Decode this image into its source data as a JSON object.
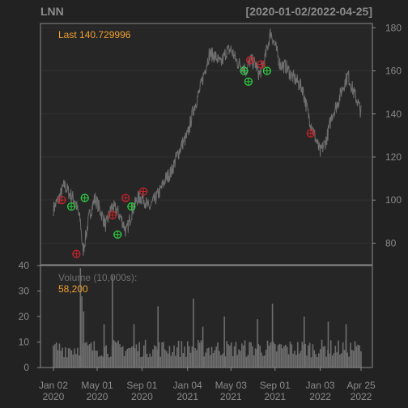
{
  "colors": {
    "background": "#222222",
    "panel": "#262626",
    "frame": "#8a8a8a",
    "grid": "#303030",
    "axis_text": "#8a8a8a",
    "title_text": "#8a8a8a",
    "accent": "#f0a030",
    "price_line": "#6e6e6e",
    "volume_bar": "#6e6e6e",
    "buy_signal": "#2ecc40",
    "sell_signal": "#c0242a"
  },
  "chart_data": {
    "type": "line",
    "symbol": "LNN",
    "date_range": "[2020-01-02/2022-04-25]",
    "x_range": [
      "2020-01-02",
      "2022-04-25"
    ],
    "last_label": "Last 140.729996",
    "price_axis": {
      "ylim": [
        70,
        182
      ],
      "ticks": [
        80,
        100,
        120,
        140,
        160,
        180
      ],
      "position": "right"
    },
    "x_ticks": [
      {
        "date": "2020-01-02",
        "line1": "Jan 02",
        "line2": "2020"
      },
      {
        "date": "2020-05-01",
        "line1": "May 01",
        "line2": "2020"
      },
      {
        "date": "2020-09-01",
        "line1": "Sep 01",
        "line2": "2020"
      },
      {
        "date": "2021-01-04",
        "line1": "Jan 04",
        "line2": "2021"
      },
      {
        "date": "2021-05-03",
        "line1": "May 03",
        "line2": "2021"
      },
      {
        "date": "2021-09-01",
        "line1": "Sep 01",
        "line2": "2021"
      },
      {
        "date": "2022-01-03",
        "line1": "Jan 03",
        "line2": "2022"
      },
      {
        "date": "2022-04-25",
        "line1": "Apr 25",
        "line2": "2022"
      }
    ],
    "price_series": [
      [
        "2020-01-02",
        96
      ],
      [
        "2020-01-15",
        100
      ],
      [
        "2020-02-01",
        107
      ],
      [
        "2020-02-15",
        103
      ],
      [
        "2020-03-01",
        100
      ],
      [
        "2020-03-16",
        90
      ],
      [
        "2020-03-23",
        76
      ],
      [
        "2020-04-10",
        93
      ],
      [
        "2020-04-25",
        101
      ],
      [
        "2020-05-10",
        95
      ],
      [
        "2020-05-25",
        88
      ],
      [
        "2020-06-10",
        97
      ],
      [
        "2020-06-25",
        95
      ],
      [
        "2020-07-10",
        90
      ],
      [
        "2020-07-20",
        85
      ],
      [
        "2020-08-05",
        95
      ],
      [
        "2020-08-20",
        101
      ],
      [
        "2020-09-05",
        101
      ],
      [
        "2020-09-20",
        96
      ],
      [
        "2020-10-05",
        100
      ],
      [
        "2020-10-20",
        104
      ],
      [
        "2020-11-05",
        110
      ],
      [
        "2020-11-20",
        113
      ],
      [
        "2020-12-05",
        120
      ],
      [
        "2020-12-20",
        126
      ],
      [
        "2021-01-04",
        130
      ],
      [
        "2021-01-20",
        142
      ],
      [
        "2021-02-05",
        150
      ],
      [
        "2021-02-20",
        160
      ],
      [
        "2021-03-05",
        168
      ],
      [
        "2021-03-20",
        167
      ],
      [
        "2021-04-05",
        163
      ],
      [
        "2021-04-20",
        169
      ],
      [
        "2021-05-03",
        170
      ],
      [
        "2021-05-20",
        164
      ],
      [
        "2021-06-05",
        162
      ],
      [
        "2021-06-15",
        160
      ],
      [
        "2021-06-25",
        165
      ],
      [
        "2021-07-10",
        163
      ],
      [
        "2021-07-20",
        158
      ],
      [
        "2021-08-05",
        166
      ],
      [
        "2021-08-20",
        178
      ],
      [
        "2021-09-01",
        172
      ],
      [
        "2021-09-15",
        163
      ],
      [
        "2021-10-01",
        162
      ],
      [
        "2021-10-15",
        158
      ],
      [
        "2021-11-01",
        155
      ],
      [
        "2021-11-15",
        152
      ],
      [
        "2021-12-01",
        140
      ],
      [
        "2021-12-15",
        132
      ],
      [
        "2022-01-03",
        122
      ],
      [
        "2022-01-20",
        128
      ],
      [
        "2022-02-05",
        140
      ],
      [
        "2022-02-20",
        145
      ],
      [
        "2022-03-05",
        152
      ],
      [
        "2022-03-20",
        158
      ],
      [
        "2022-04-05",
        150
      ],
      [
        "2022-04-15",
        146
      ],
      [
        "2022-04-25",
        140.73
      ]
    ],
    "buy_signals": [
      [
        "2020-02-20",
        97
      ],
      [
        "2020-03-28",
        101
      ],
      [
        "2020-06-26",
        84
      ],
      [
        "2020-08-03",
        97
      ],
      [
        "2021-06-08",
        160
      ],
      [
        "2021-06-20",
        155
      ],
      [
        "2021-08-10",
        160
      ]
    ],
    "sell_signals": [
      [
        "2020-01-25",
        100
      ],
      [
        "2020-03-05",
        75
      ],
      [
        "2020-06-12",
        93
      ],
      [
        "2020-07-18",
        101
      ],
      [
        "2020-09-05",
        104
      ],
      [
        "2021-06-25",
        165
      ],
      [
        "2021-07-25",
        163
      ],
      [
        "2021-12-08",
        131
      ]
    ],
    "volume": {
      "label": "Volume (10,000s):",
      "last_value": "58,200",
      "ylim": [
        0,
        40
      ],
      "ticks": [
        0,
        10,
        20,
        30,
        40
      ],
      "position": "left",
      "spikes": [
        [
          "2020-03-16",
          39
        ],
        [
          "2020-03-20",
          28
        ],
        [
          "2020-03-25",
          22
        ],
        [
          "2020-06-12",
          36
        ],
        [
          "2020-05-20",
          17
        ],
        [
          "2020-08-10",
          17
        ],
        [
          "2020-10-15",
          24
        ],
        [
          "2021-01-20",
          27
        ],
        [
          "2021-02-15",
          16
        ],
        [
          "2021-04-15",
          20
        ],
        [
          "2021-07-15",
          19
        ],
        [
          "2021-08-25",
          25
        ],
        [
          "2021-11-20",
          20
        ],
        [
          "2022-01-25",
          18
        ],
        [
          "2022-03-15",
          17
        ]
      ],
      "baseline": [
        4,
        11
      ]
    }
  }
}
